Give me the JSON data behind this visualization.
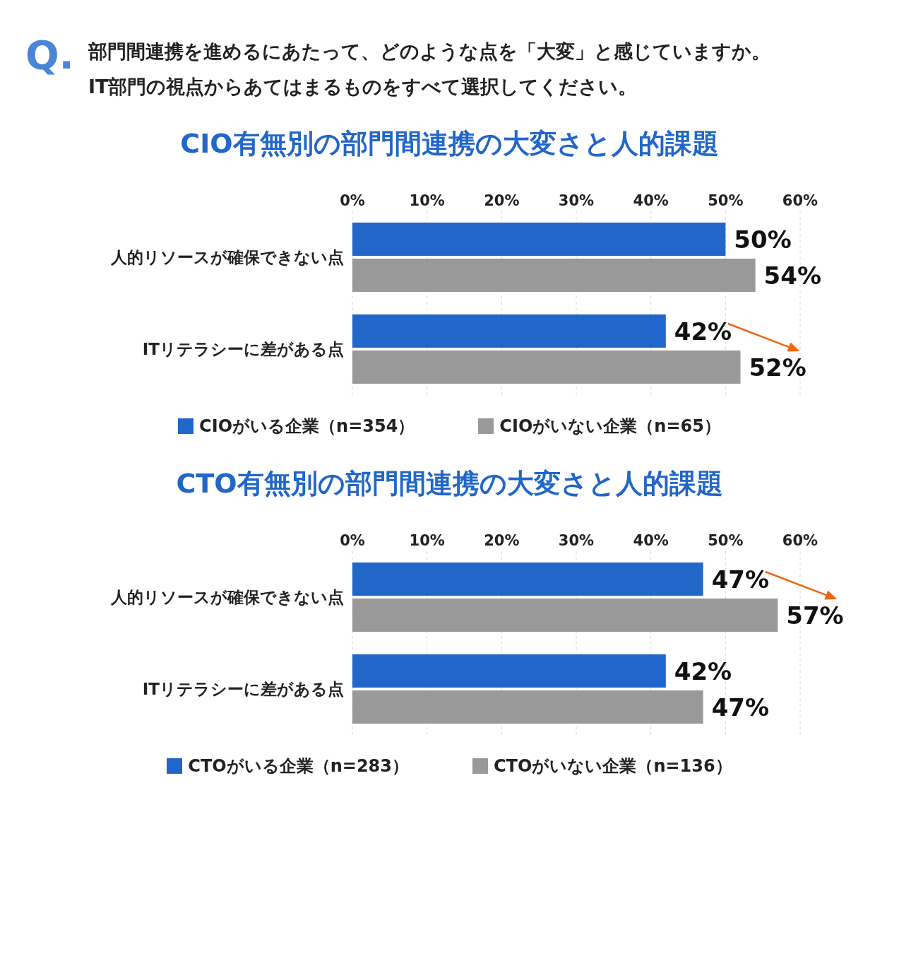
{
  "chart_data": [
    {
      "type": "bar",
      "orientation": "horizontal",
      "title": "CIO有無別の部門間連携の大変さと人的課題",
      "annotations": [
        "Q.",
        "部門間連携を進めるにあたって、どのような点を「大変」と感じていますか。",
        "IT部門の視点からあてはまるものをすべて選択してください。"
      ],
      "categories": [
        "人的リソースが確保できない点",
        "ITリテラシーに差がある点"
      ],
      "series": [
        {
          "name": "CIOがいる企業（n=354）",
          "color": "#2166c9",
          "values": [
            50,
            42
          ],
          "value_labels": [
            "50%",
            "42%"
          ]
        },
        {
          "name": "CIOがいない企業（n=65）",
          "color": "#999999",
          "values": [
            54,
            52
          ],
          "value_labels": [
            "54%",
            "52%"
          ]
        }
      ],
      "xlim": [
        0,
        60
      ],
      "xticks": [
        {
          "value": 0,
          "label": "0%"
        },
        {
          "value": 10,
          "label": "10%"
        },
        {
          "value": 20,
          "label": "20%"
        },
        {
          "value": 30,
          "label": "30%"
        },
        {
          "value": 40,
          "label": "40%"
        },
        {
          "value": 50,
          "label": "50%"
        },
        {
          "value": 60,
          "label": "60%"
        }
      ],
      "grid": "x",
      "legend": "bottom"
    },
    {
      "type": "bar",
      "orientation": "horizontal",
      "title": "CTO有無別の部門間連携の大変さと人的課題",
      "categories": [
        "人的リソースが確保できない点",
        "ITリテラシーに差がある点"
      ],
      "series": [
        {
          "name": "CTOがいる企業（n=283）",
          "color": "#2166c9",
          "values": [
            47,
            42
          ],
          "value_labels": [
            "47%",
            "42%"
          ]
        },
        {
          "name": "CTOがいない企業（n=136）",
          "color": "#999999",
          "values": [
            57,
            47
          ],
          "value_labels": [
            "57%",
            "47%"
          ]
        }
      ],
      "xlim": [
        0,
        60
      ],
      "xticks": [
        {
          "value": 0,
          "label": "0%"
        },
        {
          "value": 10,
          "label": "10%"
        },
        {
          "value": 20,
          "label": "20%"
        },
        {
          "value": 30,
          "label": "30%"
        },
        {
          "value": 40,
          "label": "40%"
        },
        {
          "value": 50,
          "label": "50%"
        },
        {
          "value": 60,
          "label": "60%"
        }
      ],
      "grid": "x",
      "legend": "bottom"
    }
  ]
}
